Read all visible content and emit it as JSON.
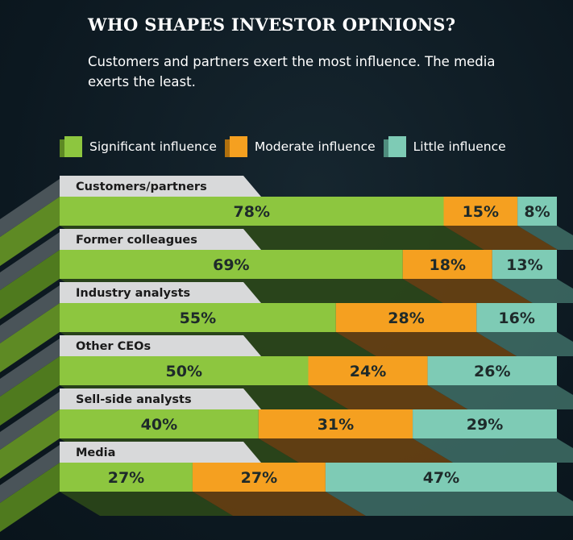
{
  "title": "WHO SHAPES INVESTOR OPINIONS?",
  "subtitle": "Customers and partners exert the most influence. The media exerts the least.",
  "legend": {
    "items": [
      {
        "label": "Significant influence",
        "color": "#8dc63f"
      },
      {
        "label": "Moderate influence",
        "color": "#f5a020"
      },
      {
        "label": "Little influence",
        "color": "#7ecbb5"
      }
    ]
  },
  "chart_data": {
    "type": "bar",
    "orientation": "horizontal",
    "stacked": true,
    "title": "WHO SHAPES INVESTOR OPINIONS?",
    "subtitle": "Customers and partners exert the most influence. The media exerts the least.",
    "categories": [
      "Customers/partners",
      "Former colleagues",
      "Industry analysts",
      "Other CEOs",
      "Sell-side analysts",
      "Media"
    ],
    "series": [
      {
        "name": "Significant influence",
        "color": "#8dc63f",
        "values": [
          78,
          69,
          55,
          50,
          40,
          27
        ],
        "labels": [
          "78%",
          "69%",
          "55%",
          "50%",
          "40%",
          "27%"
        ]
      },
      {
        "name": "Moderate influence",
        "color": "#f5a020",
        "values": [
          15,
          18,
          28,
          24,
          31,
          27
        ],
        "labels": [
          "15%",
          "18%",
          "28%",
          "24%",
          "31%",
          "27%"
        ]
      },
      {
        "name": "Little influence",
        "color": "#7ecbb5",
        "values": [
          8,
          13,
          16,
          26,
          29,
          47
        ],
        "labels": [
          "8%",
          "13%",
          "16%",
          "26%",
          "29%",
          "47%"
        ]
      }
    ],
    "unit": "%",
    "legend_position": "top",
    "grid": false
  }
}
